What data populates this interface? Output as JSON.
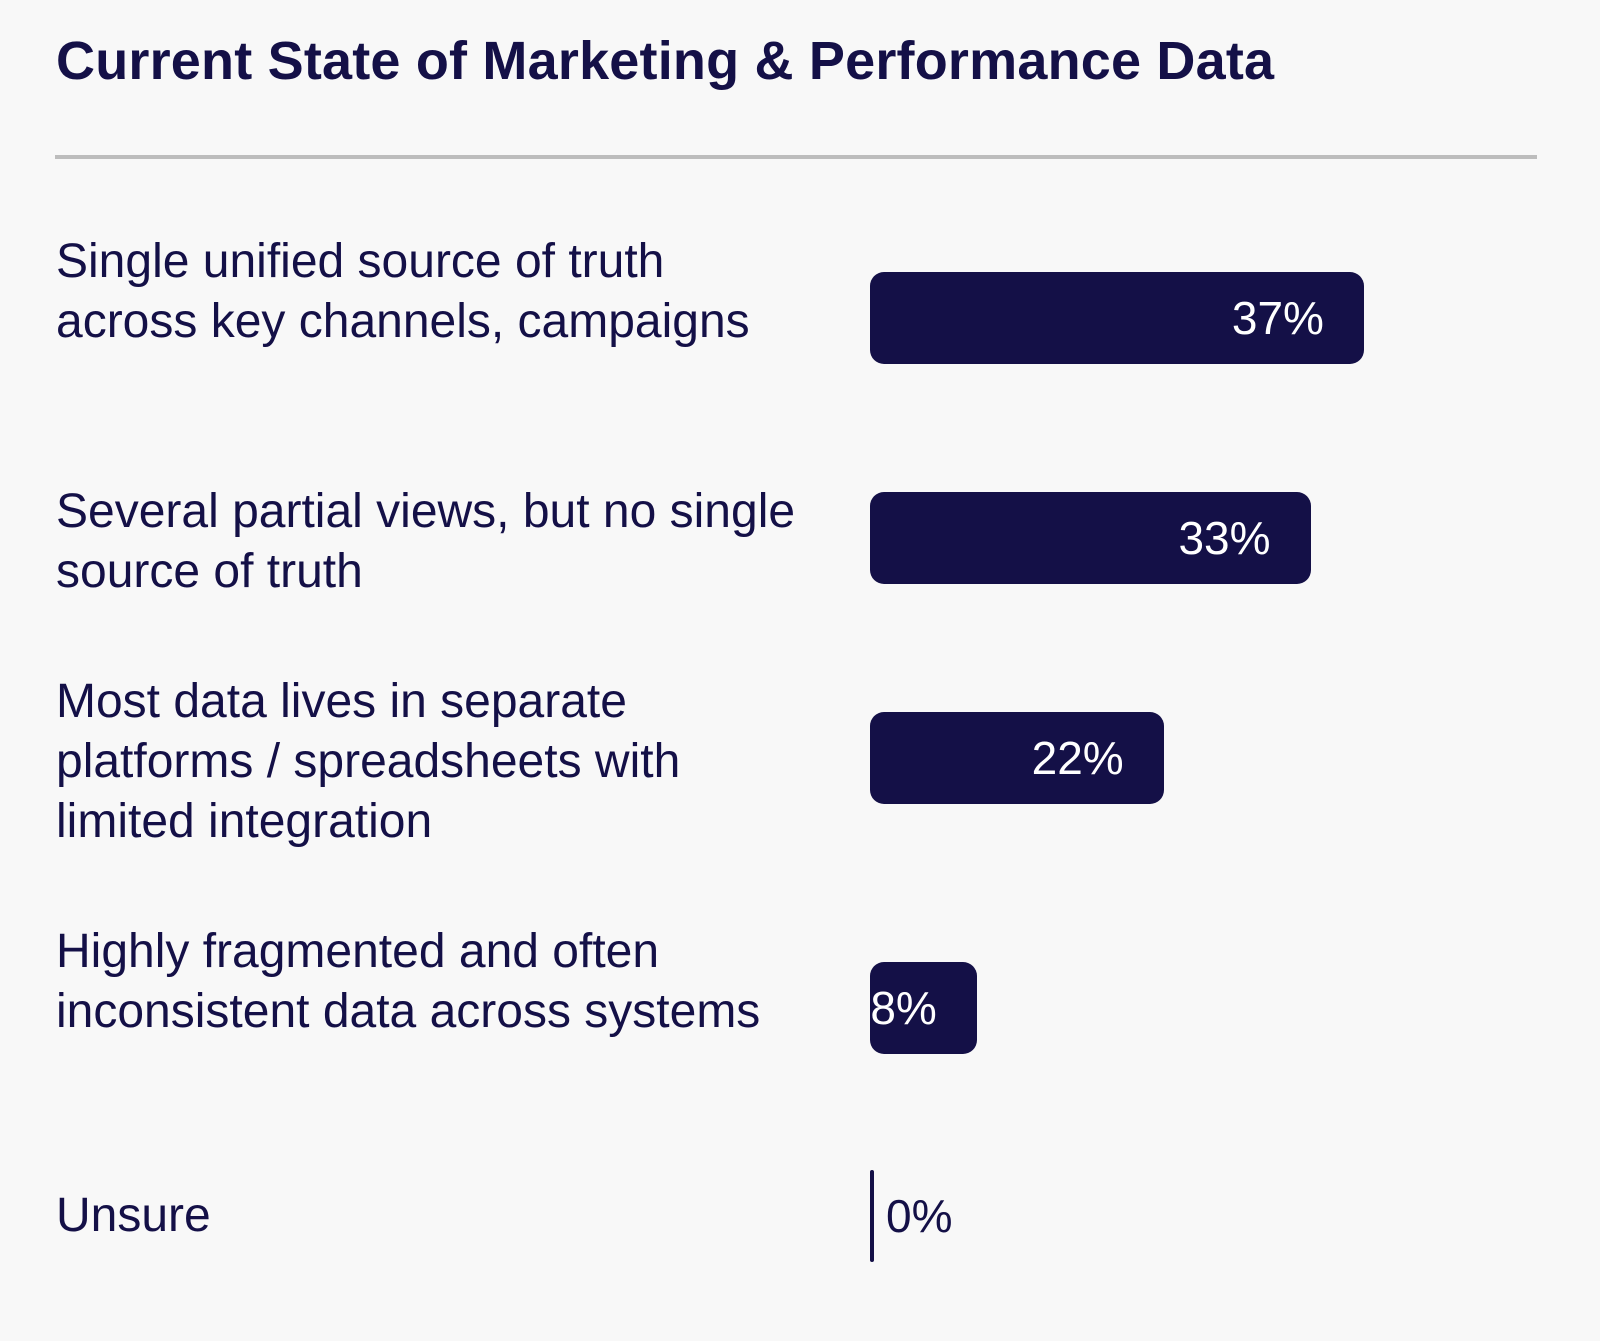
{
  "chart_data": {
    "type": "bar",
    "orientation": "horizontal",
    "title": "Current State of Marketing & Performance Data",
    "categories": [
      "Single unified source of truth across key channels, campaigns",
      "Several partial views, but no single source of truth",
      "Most data lives in separate platforms / spreadsheets with limited integration",
      "Highly fragmented and often inconsistent data across systems",
      "Unsure"
    ],
    "values": [
      37,
      33,
      22,
      8,
      0
    ],
    "value_labels": [
      "37%",
      "33%",
      "22%",
      "8%",
      "0%"
    ],
    "unit": "%",
    "xlabel": "",
    "ylabel": "",
    "bar_color": "#141047",
    "label_color": "#ffffff",
    "grid": false
  }
}
